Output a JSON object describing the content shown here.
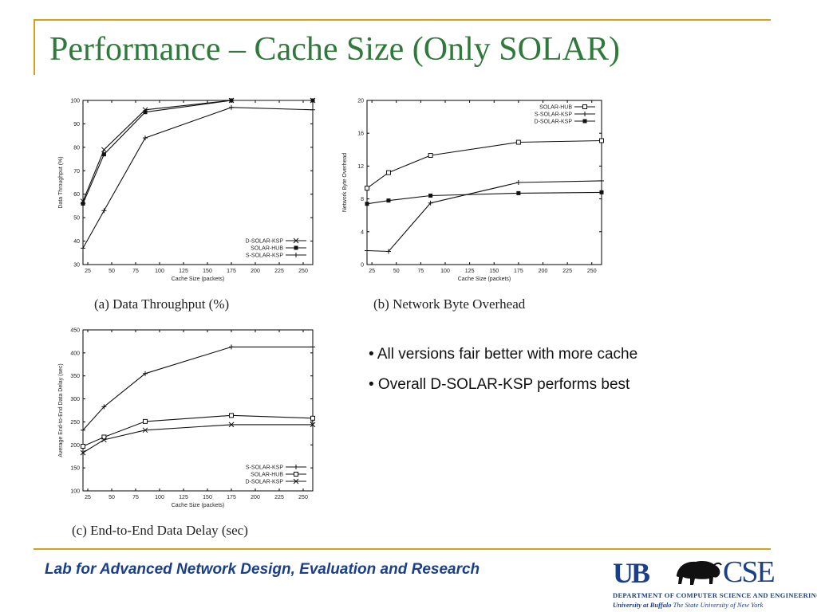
{
  "slide": {
    "title": "Performance – Cache Size (Only SOLAR)",
    "bullets": [
      "• All versions fair better with more cache",
      "• Overall D-SOLAR-KSP performs best"
    ],
    "footer": "Lab for Advanced Network Design, Evaluation and Research",
    "logo": {
      "ub_text": "UB",
      "cse_text": "CSE",
      "department": "DEPARTMENT OF COMPUTER SCIENCE AND ENGINEERING",
      "university_bold": "University at Buffalo",
      "university_rest": " The State University of New York",
      "icon": "buffalo-icon"
    },
    "colors": {
      "title": "#2f7a3a",
      "rule": "#d4a017",
      "footer": "#1a3f8a"
    }
  },
  "chart_data": [
    {
      "id": "a",
      "type": "line",
      "caption": "(a) Data Throughput (%)",
      "xlabel": "Cache Size (packets)",
      "ylabel": "Data Throughput (%)",
      "xlim": [
        20,
        260
      ],
      "ylim": [
        30,
        100
      ],
      "xticks": [
        25,
        50,
        75,
        100,
        125,
        150,
        175,
        200,
        225,
        250
      ],
      "yticks": [
        30,
        40,
        50,
        60,
        70,
        80,
        90,
        100
      ],
      "legend": "bottom-right",
      "series": [
        {
          "name": "D-SOLAR-KSP",
          "marker": "x",
          "points": [
            [
              20,
              57
            ],
            [
              42,
              79
            ],
            [
              85,
              96
            ],
            [
              175,
              100
            ],
            [
              260,
              100
            ]
          ]
        },
        {
          "name": "SOLAR-HUB",
          "marker": "filled-square",
          "points": [
            [
              20,
              56
            ],
            [
              42,
              77
            ],
            [
              85,
              95
            ],
            [
              175,
              100
            ],
            [
              260,
              100
            ]
          ]
        },
        {
          "name": "S-SOLAR-KSP",
          "marker": "plus",
          "points": [
            [
              20,
              37
            ],
            [
              42,
              53
            ],
            [
              85,
              84
            ],
            [
              175,
              97
            ],
            [
              260,
              96
            ]
          ]
        }
      ]
    },
    {
      "id": "b",
      "type": "line",
      "caption": "(b) Network Byte Overhead",
      "xlabel": "Cache Size (packets)",
      "ylabel": "Network Byte Overhead",
      "xlim": [
        20,
        260
      ],
      "ylim": [
        0,
        20
      ],
      "xticks": [
        25,
        50,
        75,
        100,
        125,
        150,
        175,
        200,
        225,
        250
      ],
      "yticks": [
        0,
        4,
        8,
        12,
        16,
        20
      ],
      "legend": "top-right",
      "series": [
        {
          "name": "SOLAR-HUB",
          "marker": "open-square",
          "points": [
            [
              20,
              9.3
            ],
            [
              42,
              11.2
            ],
            [
              85,
              13.3
            ],
            [
              175,
              14.9
            ],
            [
              260,
              15.1
            ]
          ]
        },
        {
          "name": "S-SOLAR-KSP",
          "marker": "plus",
          "points": [
            [
              20,
              1.7
            ],
            [
              42,
              1.6
            ],
            [
              85,
              7.5
            ],
            [
              175,
              10.0
            ],
            [
              260,
              10.2
            ]
          ]
        },
        {
          "name": "D-SOLAR-KSP",
          "marker": "filled-square",
          "points": [
            [
              20,
              7.4
            ],
            [
              42,
              7.8
            ],
            [
              85,
              8.4
            ],
            [
              175,
              8.7
            ],
            [
              260,
              8.8
            ]
          ]
        }
      ]
    },
    {
      "id": "c",
      "type": "line",
      "caption": "(c) End-to-End Data Delay (sec)",
      "xlabel": "Cache Size (packets)",
      "ylabel": "Average End-to-End Data Delay (sec)",
      "xlim": [
        20,
        260
      ],
      "ylim": [
        100,
        450
      ],
      "xticks": [
        25,
        50,
        75,
        100,
        125,
        150,
        175,
        200,
        225,
        250
      ],
      "yticks": [
        100,
        150,
        200,
        250,
        300,
        350,
        400,
        450
      ],
      "legend": "bottom-right",
      "series": [
        {
          "name": "S-SOLAR-KSP",
          "marker": "plus",
          "points": [
            [
              20,
              232
            ],
            [
              42,
              283
            ],
            [
              85,
              355
            ],
            [
              175,
              413
            ],
            [
              260,
              413
            ]
          ]
        },
        {
          "name": "SOLAR-HUB",
          "marker": "open-square",
          "points": [
            [
              20,
              197
            ],
            [
              42,
              217
            ],
            [
              85,
              251
            ],
            [
              175,
              264
            ],
            [
              260,
              258
            ]
          ]
        },
        {
          "name": "D-SOLAR-KSP",
          "marker": "x",
          "points": [
            [
              20,
              183
            ],
            [
              42,
              211
            ],
            [
              85,
              232
            ],
            [
              175,
              244
            ],
            [
              260,
              244
            ]
          ]
        }
      ]
    }
  ]
}
